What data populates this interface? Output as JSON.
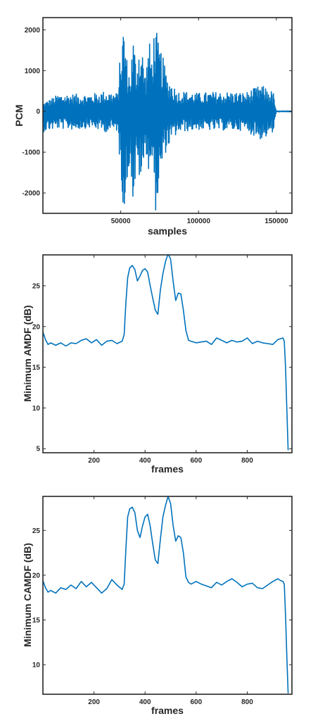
{
  "colors": {
    "series": "#0072BD",
    "axis": "#262626"
  },
  "chart_data": [
    {
      "type": "line",
      "xlabel": "samples",
      "ylabel": "PCM",
      "xlim": [
        0,
        160000
      ],
      "ylim": [
        -2500,
        2300
      ],
      "x_ticks": [
        50000,
        100000,
        150000
      ],
      "x_tick_labels": [
        "50000",
        "100000",
        "150000"
      ],
      "y_ticks": [
        -2000,
        -1000,
        0,
        1000,
        2000
      ],
      "y_tick_labels": [
        "-2000",
        "-1000",
        "0",
        "1000",
        "2000"
      ],
      "series": [
        {
          "x": [
            0,
            10000,
            20000,
            30000,
            40000,
            48000,
            50000,
            52000,
            54000,
            56000,
            58000,
            60000,
            62000,
            64000,
            66000,
            68000,
            70000,
            72000,
            74000,
            76000,
            78000,
            80000,
            82000,
            84000,
            86000,
            90000,
            100000,
            110000,
            120000,
            130000,
            140000,
            148000,
            150000,
            160000
          ],
          "envelope_upper": [
            200,
            420,
            430,
            420,
            500,
            450,
            1550,
            2230,
            1300,
            850,
            1900,
            1150,
            1750,
            1500,
            900,
            1800,
            1400,
            2270,
            1700,
            1500,
            1200,
            850,
            750,
            650,
            500,
            500,
            450,
            480,
            480,
            460,
            650,
            480,
            10,
            10
          ],
          "envelope_lower": [
            -500,
            -420,
            -450,
            -400,
            -500,
            -480,
            -1550,
            -2510,
            -2000,
            -1100,
            -2400,
            -1500,
            -1650,
            -1800,
            -900,
            -1500,
            -1200,
            -2520,
            -2200,
            -1600,
            -1100,
            -900,
            -800,
            -700,
            -550,
            -500,
            -450,
            -470,
            -460,
            -470,
            -700,
            -550,
            -10,
            -10
          ]
        }
      ]
    },
    {
      "type": "line",
      "xlabel": "frames",
      "ylabel": "Minimum AMDF (dB)",
      "xlim": [
        0,
        975
      ],
      "ylim": [
        4.5,
        28.8
      ],
      "x_ticks": [
        200,
        400,
        600,
        800
      ],
      "x_tick_labels": [
        "200",
        "400",
        "600",
        "800"
      ],
      "y_ticks": [
        5,
        10,
        15,
        20,
        25
      ],
      "y_tick_labels": [
        "5",
        "10",
        "15",
        "20",
        "25"
      ],
      "series": [
        {
          "x": [
            0,
            5,
            10,
            20,
            30,
            50,
            70,
            90,
            110,
            130,
            150,
            170,
            190,
            210,
            230,
            250,
            270,
            290,
            310,
            318,
            325,
            332,
            340,
            350,
            360,
            370,
            380,
            390,
            400,
            410,
            420,
            430,
            440,
            450,
            460,
            470,
            480,
            490,
            500,
            510,
            520,
            530,
            540,
            550,
            560,
            570,
            580,
            600,
            620,
            640,
            660,
            680,
            700,
            720,
            740,
            760,
            780,
            800,
            820,
            840,
            860,
            880,
            900,
            920,
            930,
            940,
            945,
            950,
            955,
            960
          ],
          "y": [
            19.3,
            18.9,
            18.4,
            17.8,
            18.0,
            17.7,
            18.0,
            17.6,
            18.0,
            17.9,
            18.3,
            18.5,
            18.0,
            18.4,
            17.7,
            18.2,
            18.3,
            17.9,
            18.2,
            19.0,
            23.0,
            26.0,
            27.2,
            27.5,
            27.0,
            25.6,
            26.2,
            26.9,
            27.1,
            26.7,
            25.0,
            23.5,
            22.0,
            21.5,
            24.5,
            26.5,
            28.0,
            28.9,
            28.3,
            25.5,
            23.2,
            24.1,
            24.0,
            22.0,
            19.5,
            18.3,
            18.2,
            18.0,
            18.1,
            18.2,
            17.8,
            18.6,
            18.3,
            18.0,
            18.3,
            18.1,
            18.2,
            18.6,
            17.9,
            18.2,
            18.0,
            17.9,
            17.8,
            18.4,
            18.5,
            18.6,
            18.2,
            15.0,
            10.0,
            4.8
          ]
        }
      ]
    },
    {
      "type": "line",
      "xlabel": "frames",
      "ylabel": "Minimum CAMDF (dB)",
      "xlim": [
        0,
        975
      ],
      "ylim": [
        6.7,
        28.8
      ],
      "x_ticks": [
        200,
        400,
        600,
        800
      ],
      "x_tick_labels": [
        "200",
        "400",
        "600",
        "800"
      ],
      "y_ticks": [
        10,
        15,
        20,
        25
      ],
      "y_tick_labels": [
        "10",
        "15",
        "20",
        "25"
      ],
      "series": [
        {
          "x": [
            0,
            5,
            10,
            20,
            30,
            50,
            70,
            90,
            110,
            130,
            150,
            170,
            190,
            210,
            230,
            250,
            270,
            290,
            310,
            318,
            325,
            332,
            340,
            350,
            360,
            370,
            380,
            390,
            400,
            410,
            420,
            430,
            440,
            450,
            460,
            470,
            480,
            490,
            500,
            510,
            520,
            530,
            540,
            550,
            560,
            570,
            580,
            600,
            620,
            640,
            660,
            680,
            700,
            720,
            740,
            760,
            780,
            800,
            820,
            840,
            860,
            880,
            900,
            920,
            930,
            940,
            945,
            950,
            955,
            960
          ],
          "y": [
            19.4,
            19.0,
            18.6,
            18.1,
            18.3,
            18.0,
            18.6,
            18.4,
            18.9,
            18.5,
            19.3,
            18.7,
            19.2,
            18.6,
            18.0,
            18.5,
            19.5,
            18.9,
            18.4,
            19.0,
            23.0,
            26.5,
            27.4,
            27.6,
            27.0,
            25.0,
            24.2,
            25.5,
            26.5,
            26.8,
            25.5,
            23.5,
            21.7,
            21.3,
            24.0,
            26.5,
            27.8,
            28.8,
            28.0,
            25.5,
            23.8,
            24.4,
            24.2,
            22.5,
            19.8,
            19.2,
            19.0,
            19.3,
            19.0,
            18.8,
            18.6,
            19.2,
            18.9,
            19.3,
            19.6,
            19.2,
            18.7,
            19.0,
            19.1,
            18.6,
            18.5,
            18.9,
            19.3,
            19.6,
            19.4,
            19.3,
            19.0,
            15.5,
            11.0,
            6.8
          ]
        }
      ]
    }
  ]
}
